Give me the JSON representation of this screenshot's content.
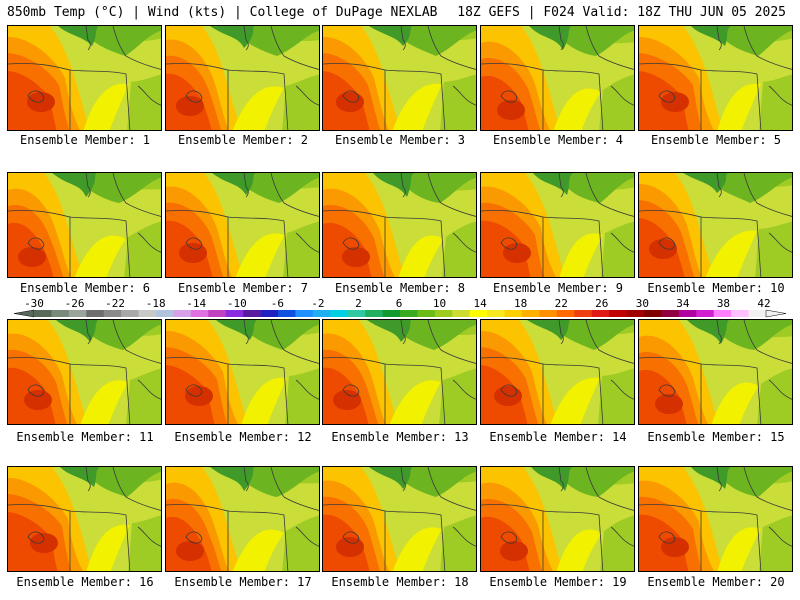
{
  "header": {
    "left": "850mb Temp (°C) | Wind (kts) | College of DuPage NEXLAB",
    "right": "18Z GEFS | F024 Valid: 18Z THU JUN 05 2025"
  },
  "panel_label_prefix": "Ensemble Member: ",
  "members": [
    {
      "label": "Ensemble Member: 1"
    },
    {
      "label": "Ensemble Member: 2"
    },
    {
      "label": "Ensemble Member: 3"
    },
    {
      "label": "Ensemble Member: 4"
    },
    {
      "label": "Ensemble Member: 5"
    },
    {
      "label": "Ensemble Member: 6"
    },
    {
      "label": "Ensemble Member: 7"
    },
    {
      "label": "Ensemble Member: 8"
    },
    {
      "label": "Ensemble Member: 9"
    },
    {
      "label": "Ensemble Member: 10"
    },
    {
      "label": "Ensemble Member: 11"
    },
    {
      "label": "Ensemble Member: 12"
    },
    {
      "label": "Ensemble Member: 13"
    },
    {
      "label": "Ensemble Member: 14"
    },
    {
      "label": "Ensemble Member: 15"
    },
    {
      "label": "Ensemble Member: 16"
    },
    {
      "label": "Ensemble Member: 17"
    },
    {
      "label": "Ensemble Member: 18"
    },
    {
      "label": "Ensemble Member: 19"
    },
    {
      "label": "Ensemble Member: 20"
    }
  ],
  "colorbar": {
    "tick_labels": [
      "-30",
      "-26",
      "-22",
      "-18",
      "-14",
      "-10",
      "-6",
      "-2",
      "2",
      "6",
      "10",
      "14",
      "18",
      "22",
      "26",
      "30",
      "34",
      "38",
      "42"
    ],
    "colors": [
      "#5a6a5a",
      "#7a8a7a",
      "#9aa49a",
      "#6e6e6e",
      "#8a8a8a",
      "#a8a8a8",
      "#c8c8c8",
      "#b0c4de",
      "#d8a0e8",
      "#e070e0",
      "#c040c0",
      "#8a2be2",
      "#5a1aa0",
      "#2020c0",
      "#1050e0",
      "#1e90ff",
      "#20b0f0",
      "#00d0e0",
      "#30c8a0",
      "#20b060",
      "#109a30",
      "#3aaa20",
      "#6cbc18",
      "#9ccc20",
      "#ccdc30",
      "#ffff00",
      "#f8e820",
      "#ffd000",
      "#ffb000",
      "#ff9000",
      "#ff6a00",
      "#f04010",
      "#e01818",
      "#c00000",
      "#a00000",
      "#800000",
      "#900040",
      "#b000a0",
      "#d020d0",
      "#ff80ff",
      "#ffc0ff",
      "#f0f0f0"
    ]
  },
  "palette": {
    "dark_red": "#d43000",
    "red": "#ee4a00",
    "orange_red": "#f87000",
    "orange": "#fb9a00",
    "gold": "#fcc400",
    "yellow": "#f2f200",
    "yellow_green": "#cadd38",
    "light_green": "#9ecc25",
    "green": "#6cb520",
    "dark_green": "#3f9a2a",
    "map_lines": "#3a3a3a"
  }
}
